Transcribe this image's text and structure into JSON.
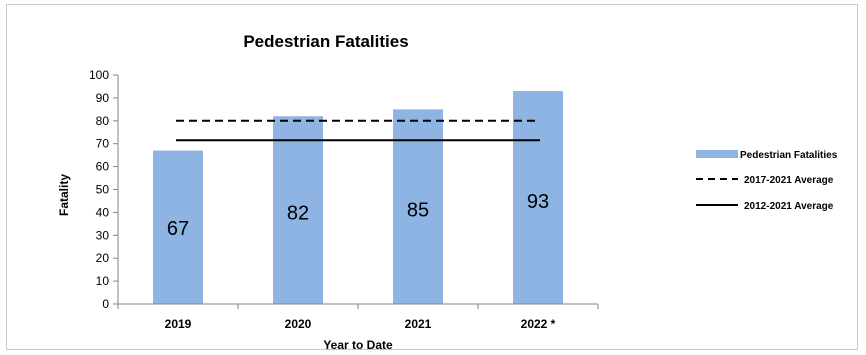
{
  "chart_data": {
    "type": "bar",
    "title": "Pedestrian Fatalities",
    "xlabel": "Year to Date",
    "ylabel": "Fatality",
    "categories": [
      "2019",
      "2020",
      "2021",
      "2022 *"
    ],
    "series": [
      {
        "name": "Pedestrian Fatalities",
        "values": [
          67,
          82,
          85,
          93
        ]
      }
    ],
    "reference_lines": [
      {
        "name": "2017-2021 Average",
        "value": 80,
        "style": "dashed"
      },
      {
        "name": "2012-2021 Average",
        "value": 71.5,
        "style": "solid"
      }
    ],
    "ylim": [
      0,
      100
    ],
    "yticks": [
      0,
      10,
      20,
      30,
      40,
      50,
      60,
      70,
      80,
      90,
      100
    ],
    "grid": false,
    "legend_position": "right",
    "data_labels": true,
    "colors": {
      "bar": "#8eb4e3",
      "line": "#000000"
    }
  }
}
